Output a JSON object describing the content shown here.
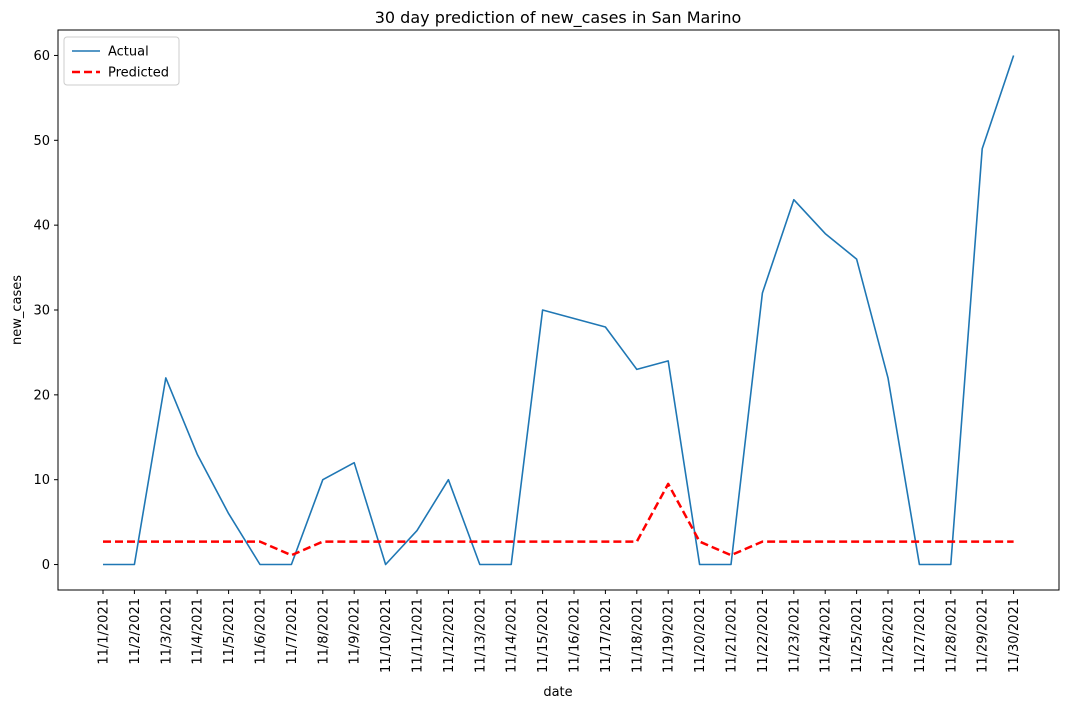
{
  "chart_data": {
    "type": "line",
    "title": "30 day prediction of new_cases in San Marino",
    "xlabel": "date",
    "ylabel": "new_cases",
    "ylim": [
      -3,
      63
    ],
    "yticks": [
      0,
      10,
      20,
      30,
      40,
      50,
      60
    ],
    "grid": false,
    "legend_position": "top-left",
    "categories": [
      "11/1/2021",
      "11/2/2021",
      "11/3/2021",
      "11/4/2021",
      "11/5/2021",
      "11/6/2021",
      "11/7/2021",
      "11/8/2021",
      "11/9/2021",
      "11/10/2021",
      "11/11/2021",
      "11/12/2021",
      "11/13/2021",
      "11/14/2021",
      "11/15/2021",
      "11/16/2021",
      "11/17/2021",
      "11/18/2021",
      "11/19/2021",
      "11/20/2021",
      "11/21/2021",
      "11/22/2021",
      "11/23/2021",
      "11/24/2021",
      "11/25/2021",
      "11/26/2021",
      "11/27/2021",
      "11/28/2021",
      "11/29/2021",
      "11/30/2021"
    ],
    "series": [
      {
        "name": "Actual",
        "color": "#1f77b4",
        "style": "solid",
        "values": [
          0,
          0,
          22,
          13,
          6,
          0,
          0,
          10,
          12,
          0,
          4,
          10,
          0,
          0,
          30,
          29,
          28,
          23,
          24,
          0,
          0,
          32,
          43,
          39,
          36,
          22,
          0,
          0,
          49,
          60
        ]
      },
      {
        "name": "Predicted",
        "color": "#ff0000",
        "style": "dashed",
        "values": [
          2.7,
          2.7,
          2.7,
          2.7,
          2.7,
          2.7,
          1.1,
          2.7,
          2.7,
          2.7,
          2.7,
          2.7,
          2.7,
          2.7,
          2.7,
          2.7,
          2.7,
          2.7,
          9.5,
          2.7,
          1.1,
          2.7,
          2.7,
          2.7,
          2.7,
          2.7,
          2.7,
          2.7,
          2.7,
          2.7
        ]
      }
    ]
  }
}
